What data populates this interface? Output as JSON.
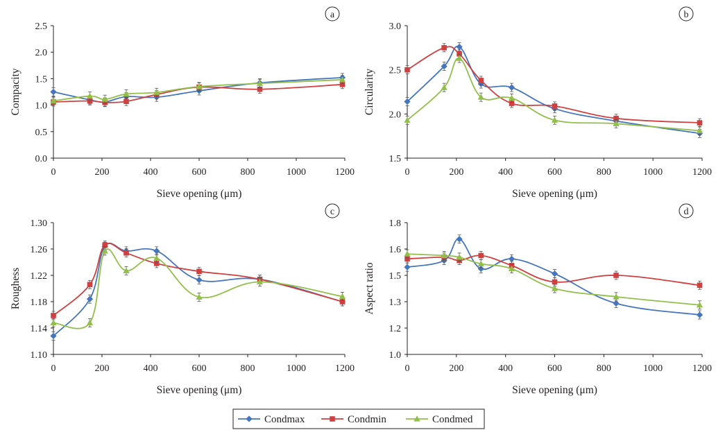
{
  "chart_data": [
    {
      "type": "line",
      "panel": "a",
      "xlabel": "Sieve opening (μm)",
      "ylabel": "Compacity",
      "xlim": [
        0,
        1200
      ],
      "ylim": [
        0.0,
        2.5
      ],
      "xticks": [
        "0",
        "200",
        "400",
        "600",
        "800",
        "1000",
        "1200"
      ],
      "yticks": [
        "0.0",
        "0.5",
        "1.0",
        "1.5",
        "2.0",
        "2.5"
      ],
      "x": [
        0,
        150,
        212,
        300,
        425,
        600,
        850,
        1190
      ],
      "series": [
        {
          "name": "Condmax",
          "values": [
            1.25,
            1.1,
            1.06,
            1.16,
            1.15,
            1.27,
            1.42,
            1.52
          ]
        },
        {
          "name": "Condmin",
          "values": [
            1.06,
            1.08,
            1.05,
            1.07,
            1.2,
            1.34,
            1.3,
            1.39
          ]
        },
        {
          "name": "Condmed",
          "values": [
            1.08,
            1.17,
            1.11,
            1.21,
            1.24,
            1.35,
            1.41,
            1.48
          ]
        }
      ]
    },
    {
      "type": "line",
      "panel": "b",
      "xlabel": "Sieve opening (μm)",
      "ylabel": "Circularity",
      "xlim": [
        0,
        1200
      ],
      "ylim": [
        1.5,
        3.0
      ],
      "xticks": [
        "0",
        "200",
        "400",
        "600",
        "800",
        "1000",
        "1200"
      ],
      "yticks": [
        "1.5",
        "2.0",
        "2.5",
        "3.0"
      ],
      "x": [
        0,
        150,
        212,
        300,
        425,
        600,
        850,
        1190
      ],
      "series": [
        {
          "name": "Condmax",
          "values": [
            2.14,
            2.54,
            2.76,
            2.34,
            2.3,
            2.06,
            1.92,
            1.78
          ]
        },
        {
          "name": "Condmin",
          "values": [
            2.5,
            2.75,
            2.68,
            2.38,
            2.12,
            2.09,
            1.95,
            1.9
          ]
        },
        {
          "name": "Condmed",
          "values": [
            1.93,
            2.3,
            2.63,
            2.19,
            2.18,
            1.93,
            1.89,
            1.81
          ]
        }
      ]
    },
    {
      "type": "line",
      "panel": "c",
      "xlabel": "Sieve opening (μm)",
      "ylabel": "Roughess",
      "xlim": [
        0,
        1200
      ],
      "ylim": [
        1.1,
        1.3
      ],
      "xticks": [
        "0",
        "200",
        "400",
        "600",
        "800",
        "1000",
        "1200"
      ],
      "yticks": [
        "1.10",
        "1.14",
        "1.18",
        "1.22",
        "1.26",
        "1.30"
      ],
      "x": [
        0,
        150,
        212,
        300,
        425,
        600,
        850,
        1190
      ],
      "series": [
        {
          "name": "Condmax",
          "values": [
            1.128,
            1.184,
            1.264,
            1.257,
            1.257,
            1.213,
            1.214,
            1.18
          ]
        },
        {
          "name": "Condmin",
          "values": [
            1.159,
            1.206,
            1.266,
            1.254,
            1.238,
            1.226,
            1.214,
            1.18
          ]
        },
        {
          "name": "Condmed",
          "values": [
            1.148,
            1.148,
            1.257,
            1.227,
            1.246,
            1.187,
            1.21,
            1.188
          ]
        }
      ]
    },
    {
      "type": "line",
      "panel": "d",
      "xlabel": "Sieve opening (μm)",
      "ylabel": "Aspect ratio",
      "xlim": [
        0,
        1200
      ],
      "ylim": [
        1.0,
        1.8
      ],
      "xticks": [
        "0",
        "200",
        "400",
        "600",
        "800",
        "1000",
        "1200"
      ],
      "yticks": [
        "1.0",
        "1.2",
        "1.3",
        "1.5",
        "1.6",
        "1.8"
      ],
      "x": [
        0,
        150,
        212,
        300,
        425,
        600,
        850,
        1190
      ],
      "series": [
        {
          "name": "Condmax",
          "values": [
            1.53,
            1.57,
            1.7,
            1.52,
            1.58,
            1.49,
            1.31,
            1.24
          ]
        },
        {
          "name": "Condmin",
          "values": [
            1.58,
            1.59,
            1.57,
            1.6,
            1.54,
            1.44,
            1.48,
            1.42
          ]
        },
        {
          "name": "Condmed",
          "values": [
            1.61,
            1.6,
            1.59,
            1.55,
            1.52,
            1.4,
            1.35,
            1.3
          ]
        }
      ]
    }
  ],
  "legend": {
    "placement": "bottom-center",
    "entries": [
      {
        "name": "Condmax",
        "color": "#4575bd",
        "marker": "diamond"
      },
      {
        "name": "Condmin",
        "color": "#cf4040",
        "marker": "square"
      },
      {
        "name": "Condmed",
        "color": "#92bf4a",
        "marker": "triangle"
      }
    ]
  },
  "colors": {
    "Condmax": "#4575bd",
    "Condmin": "#cf4040",
    "Condmed": "#92bf4a",
    "axis": "#231f20"
  }
}
